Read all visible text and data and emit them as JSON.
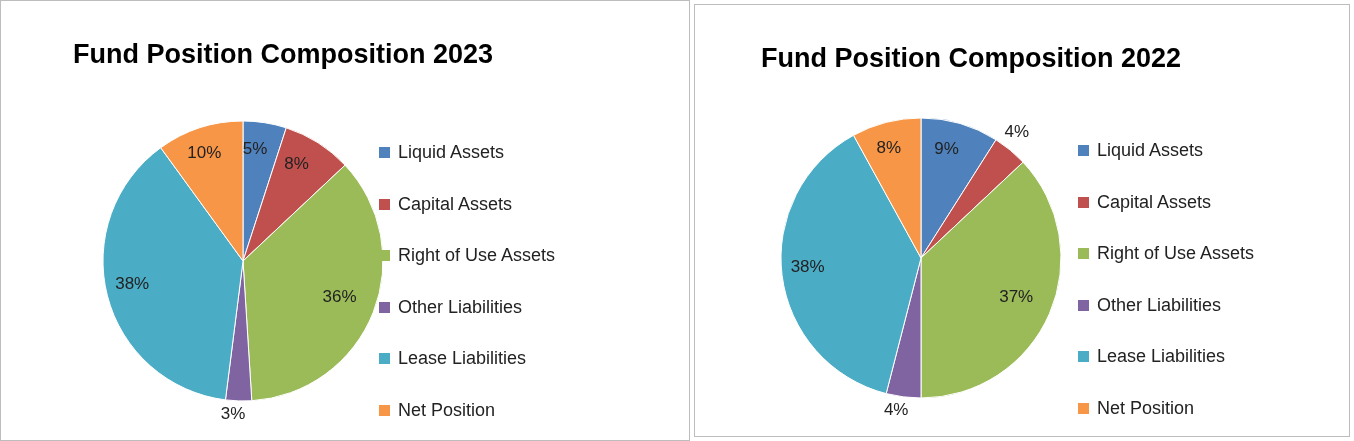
{
  "chart_data": [
    {
      "type": "pie",
      "title": "Fund Position Composition 2023",
      "categories": [
        "Liquid Assets",
        "Capital Assets",
        "Right of Use Assets",
        "Other Liabilities",
        "Lease Liabilities",
        "Net Position"
      ],
      "values": [
        5,
        8,
        36,
        3,
        38,
        10
      ],
      "colors": [
        "#4f81bd",
        "#c0504d",
        "#9bbb59",
        "#8064a2",
        "#4bacc6",
        "#f79646"
      ],
      "value_labels": [
        "5%",
        "8%",
        "36%",
        "3%",
        "38%",
        "10%"
      ],
      "legend": "right"
    },
    {
      "type": "pie",
      "title": "Fund Position Composition 2022",
      "categories": [
        "Liquid Assets",
        "Capital Assets",
        "Right of Use Assets",
        "Other Liabilities",
        "Lease Liabilities",
        "Net Position"
      ],
      "values": [
        9,
        4,
        37,
        4,
        38,
        8
      ],
      "colors": [
        "#4f81bd",
        "#c0504d",
        "#9bbb59",
        "#8064a2",
        "#4bacc6",
        "#f79646"
      ],
      "value_labels": [
        "9%",
        "4%",
        "37%",
        "4%",
        "38%",
        "8%"
      ],
      "legend": "right"
    }
  ]
}
